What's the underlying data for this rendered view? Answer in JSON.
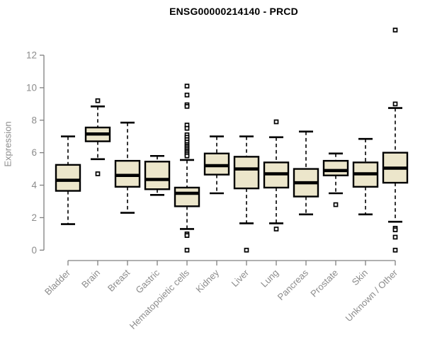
{
  "chart_data": {
    "type": "boxplot",
    "title": "ENSG00000214140 - PRCD",
    "ylabel": "Expression",
    "xlabel": "",
    "ylim": [
      0,
      12
    ],
    "yticks": [
      0,
      2,
      4,
      6,
      8,
      10,
      12
    ],
    "grid": false,
    "legend": "none",
    "categories": [
      "Bladder",
      "Brain",
      "Breast",
      "Gastric",
      "Hematopoietic cells",
      "Kidney",
      "Liver",
      "Lung",
      "Pancreas",
      "Prostate",
      "Skin",
      "Unknown / Other"
    ],
    "boxes": [
      {
        "category": "Bladder",
        "whisker_low": 1.6,
        "q1": 3.65,
        "median": 4.3,
        "q3": 5.25,
        "whisker_high": 7.0,
        "outliers": []
      },
      {
        "category": "Brain",
        "whisker_low": 5.6,
        "q1": 6.7,
        "median": 7.15,
        "q3": 7.55,
        "whisker_high": 8.85,
        "outliers": [
          9.2,
          4.7
        ]
      },
      {
        "category": "Breast",
        "whisker_low": 2.3,
        "q1": 3.9,
        "median": 4.6,
        "q3": 5.5,
        "whisker_high": 7.85,
        "outliers": []
      },
      {
        "category": "Gastric",
        "whisker_low": 3.4,
        "q1": 3.75,
        "median": 4.35,
        "q3": 5.45,
        "whisker_high": 5.8,
        "outliers": []
      },
      {
        "category": "Hematopoietic cells",
        "whisker_low": 1.3,
        "q1": 2.7,
        "median": 3.5,
        "q3": 3.85,
        "whisker_high": 5.55,
        "outliers": [
          10.1,
          9.55,
          8.95,
          8.85,
          7.7,
          7.5,
          7.1,
          6.95,
          6.8,
          6.65,
          6.5,
          6.4,
          6.3,
          6.2,
          6.1,
          6.0,
          5.9,
          5.8,
          1.0,
          0.9,
          0.0
        ]
      },
      {
        "category": "Kidney",
        "whisker_low": 3.5,
        "q1": 4.65,
        "median": 5.2,
        "q3": 5.95,
        "whisker_high": 7.0,
        "outliers": []
      },
      {
        "category": "Liver",
        "whisker_low": 1.65,
        "q1": 3.8,
        "median": 5.0,
        "q3": 5.75,
        "whisker_high": 7.0,
        "outliers": [
          0.0
        ]
      },
      {
        "category": "Lung",
        "whisker_low": 1.65,
        "q1": 3.85,
        "median": 4.7,
        "q3": 5.4,
        "whisker_high": 6.95,
        "outliers": [
          7.9,
          1.3
        ]
      },
      {
        "category": "Pancreas",
        "whisker_low": 2.2,
        "q1": 3.3,
        "median": 4.15,
        "q3": 5.0,
        "whisker_high": 7.3,
        "outliers": []
      },
      {
        "category": "Prostate",
        "whisker_low": 3.5,
        "q1": 4.6,
        "median": 4.9,
        "q3": 5.5,
        "whisker_high": 5.95,
        "outliers": [
          2.8
        ]
      },
      {
        "category": "Skin",
        "whisker_low": 2.2,
        "q1": 3.9,
        "median": 4.7,
        "q3": 5.4,
        "whisker_high": 6.85,
        "outliers": []
      },
      {
        "category": "Unknown / Other",
        "whisker_low": 1.75,
        "q1": 4.15,
        "median": 5.05,
        "q3": 6.0,
        "whisker_high": 8.75,
        "outliers": [
          13.55,
          9.0,
          1.35,
          1.25,
          0.8,
          0.0
        ]
      }
    ],
    "style": {
      "box_fill": "#ece6cb",
      "box_stroke": "#000000",
      "median_color": "#000000",
      "whisker_color": "#000000",
      "axis_color": "#808080",
      "tick_label_color": "#8c8c8c",
      "title_color": "#000000"
    }
  }
}
